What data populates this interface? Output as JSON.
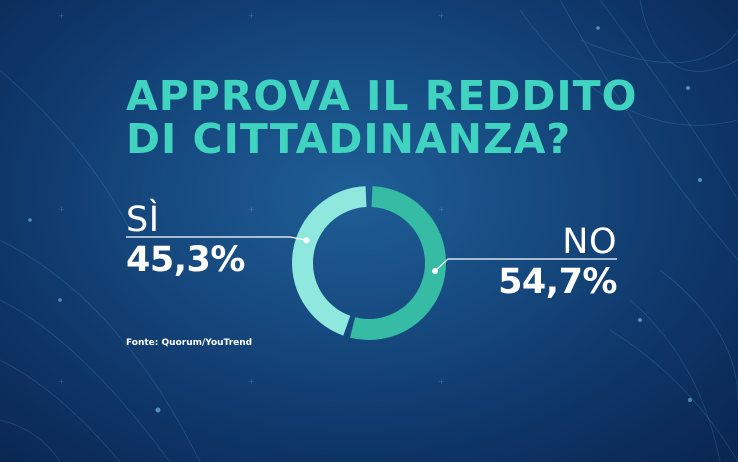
{
  "chart_data": {
    "type": "pie",
    "variant": "donut",
    "title_lines": [
      "APPROVA IL REDDITO",
      "DI CITTADINANZA?"
    ],
    "categories": [
      "SÌ",
      "NO"
    ],
    "values": [
      45.3,
      54.7
    ],
    "value_labels": [
      "45,3%",
      "54,7%"
    ],
    "colors": [
      "#8ee8dd",
      "#36bba4"
    ],
    "source": "Fonte: Quorum/YouTrend"
  }
}
